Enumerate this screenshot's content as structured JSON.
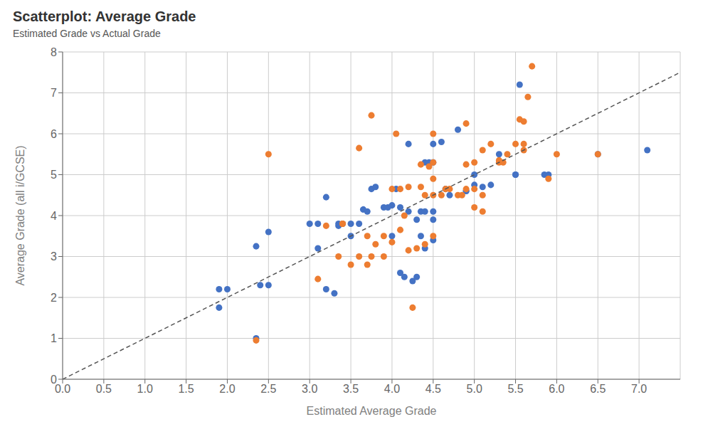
{
  "chart_data": {
    "type": "scatter",
    "title": "Scatterplot: Average Grade",
    "subtitle": "Estimated Grade vs Actual Grade",
    "xlabel": "Estimated Average Grade",
    "ylabel": "Average Grade (all i/GCSE)",
    "xlim": [
      0.0,
      7.5
    ],
    "ylim": [
      0.0,
      8.0
    ],
    "xticks": [
      {
        "value": 0,
        "label": "0.0"
      },
      0.5,
      {
        "value": 1,
        "label": "1.0"
      },
      1.5,
      {
        "value": 2,
        "label": "2.0"
      },
      2.5,
      {
        "value": 3,
        "label": "3.0"
      },
      3.5,
      {
        "value": 4,
        "label": "4.0"
      },
      4.5,
      {
        "value": 5,
        "label": "5.0"
      },
      5.5,
      {
        "value": 6,
        "label": "6.0"
      },
      6.5,
      {
        "value": 7,
        "label": "7.0"
      }
    ],
    "yticks": [
      0,
      1,
      2,
      3,
      4,
      5,
      6,
      7,
      8
    ],
    "grid": true,
    "series": [
      {
        "color": "#4472C4",
        "marker": "circle",
        "x": [
          1.9,
          1.9,
          2.0,
          2.35,
          2.35,
          2.4,
          2.5,
          2.5,
          3.0,
          3.1,
          3.1,
          3.2,
          3.2,
          3.3,
          3.35,
          3.35,
          3.4,
          3.5,
          3.5,
          3.6,
          3.65,
          3.7,
          3.75,
          3.8,
          3.9,
          3.95,
          4.0,
          4.0,
          4.05,
          4.1,
          4.1,
          4.15,
          4.2,
          4.2,
          4.25,
          4.3,
          4.3,
          4.35,
          4.35,
          4.4,
          4.4,
          4.4,
          4.45,
          4.5,
          4.5,
          4.5,
          4.5,
          4.5,
          4.6,
          4.65,
          4.7,
          4.8,
          4.9,
          4.9,
          5.0,
          5.0,
          5.1,
          5.2,
          5.3,
          5.5,
          5.5,
          5.55,
          5.85,
          5.9,
          6.5,
          7.1
        ],
        "values": [
          1.75,
          2.2,
          2.2,
          1.0,
          3.25,
          2.3,
          2.3,
          3.6,
          3.8,
          3.2,
          3.8,
          2.2,
          4.45,
          2.1,
          3.75,
          3.8,
          3.8,
          3.5,
          3.8,
          3.8,
          4.15,
          4.1,
          4.65,
          4.7,
          4.2,
          4.2,
          4.25,
          3.5,
          4.65,
          2.6,
          4.2,
          2.5,
          4.1,
          5.75,
          2.4,
          2.5,
          3.9,
          3.5,
          4.1,
          3.2,
          4.1,
          5.3,
          5.3,
          3.4,
          3.9,
          4.1,
          5.3,
          5.75,
          5.8,
          4.65,
          4.5,
          6.1,
          4.6,
          4.6,
          4.75,
          5.0,
          4.7,
          4.75,
          5.5,
          5.0,
          5.0,
          7.2,
          5.0,
          5.0,
          5.5,
          5.6
        ]
      },
      {
        "color": "#ED7D31",
        "marker": "circle",
        "x": [
          2.35,
          2.5,
          3.1,
          3.2,
          3.35,
          3.4,
          3.4,
          3.5,
          3.6,
          3.6,
          3.7,
          3.7,
          3.75,
          3.75,
          3.8,
          3.9,
          3.9,
          4.0,
          4.0,
          4.05,
          4.1,
          4.1,
          4.15,
          4.2,
          4.2,
          4.25,
          4.3,
          4.35,
          4.35,
          4.4,
          4.4,
          4.45,
          4.5,
          4.5,
          4.5,
          4.5,
          4.5,
          4.6,
          4.65,
          4.7,
          4.8,
          4.85,
          4.9,
          4.9,
          4.9,
          5.0,
          5.0,
          5.0,
          5.1,
          5.1,
          5.1,
          5.2,
          5.3,
          5.3,
          5.35,
          5.4,
          5.5,
          5.55,
          5.6,
          5.6,
          5.6,
          5.65,
          5.7,
          5.9,
          6.0,
          6.5
        ],
        "values": [
          0.95,
          5.5,
          2.45,
          3.75,
          3.0,
          3.8,
          3.8,
          2.8,
          3.0,
          5.65,
          2.8,
          3.5,
          3.0,
          6.45,
          3.3,
          3.0,
          3.5,
          3.35,
          4.65,
          6.0,
          3.65,
          4.65,
          4.0,
          3.15,
          4.7,
          1.75,
          3.2,
          4.7,
          5.25,
          3.3,
          4.5,
          5.2,
          3.5,
          4.5,
          4.9,
          5.3,
          6.0,
          4.5,
          4.65,
          4.65,
          4.5,
          4.5,
          4.65,
          5.25,
          6.25,
          4.2,
          4.65,
          5.3,
          4.1,
          4.5,
          5.6,
          5.75,
          5.3,
          5.35,
          5.3,
          5.5,
          5.75,
          6.35,
          5.6,
          5.75,
          6.3,
          6.9,
          7.65,
          4.9,
          5.5,
          5.5
        ]
      },
      {
        "type": "line",
        "line_style": "dashed",
        "color": "#555555",
        "x": [
          0.0,
          7.5
        ],
        "values": [
          0.0,
          7.5
        ]
      }
    ]
  }
}
